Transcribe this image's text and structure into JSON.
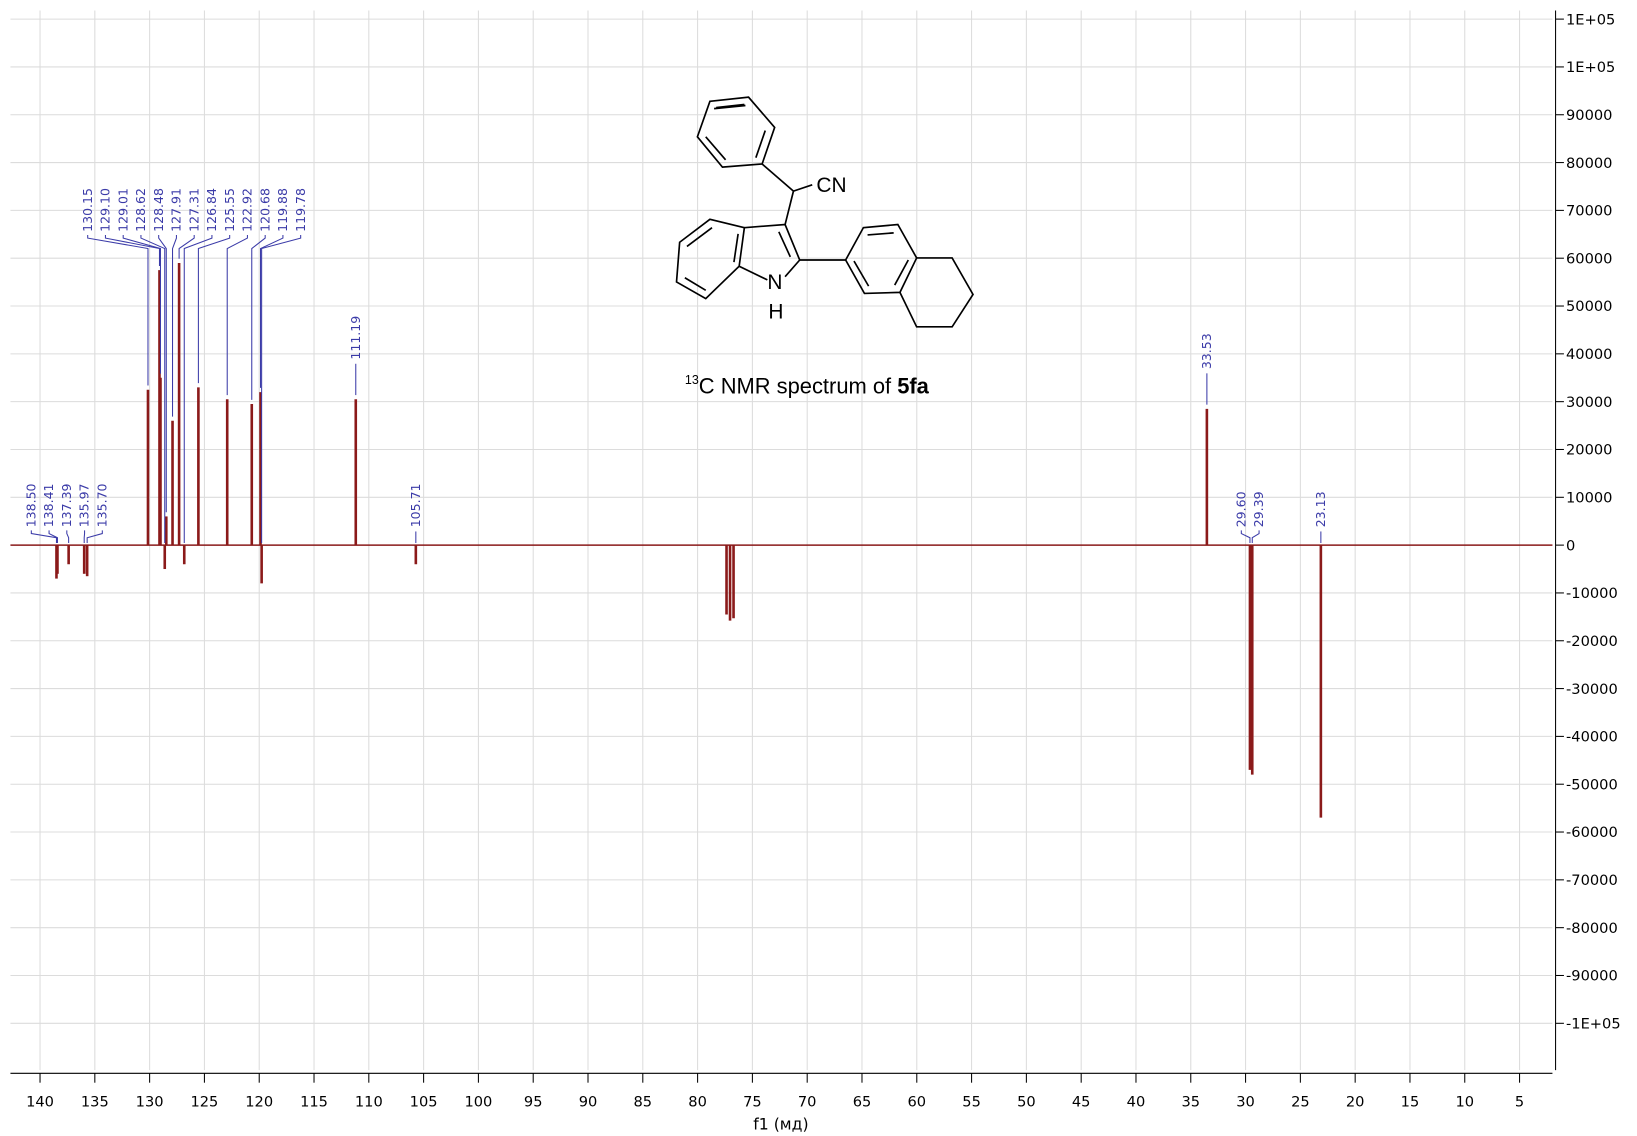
{
  "chart_data": {
    "type": "nmr",
    "title_sup": "13",
    "title": "C NMR spectrum of ",
    "title_bold": "5fa",
    "structure_labels": [
      "CN",
      "N",
      "H"
    ],
    "xlabel": "f1 (мд)",
    "xlim": [
      142.7,
      2.0
    ],
    "ylim": [
      -109800,
      111800
    ],
    "xticks": [
      140,
      135,
      130,
      125,
      120,
      115,
      110,
      105,
      100,
      95,
      90,
      85,
      80,
      75,
      70,
      65,
      60,
      55,
      50,
      45,
      40,
      35,
      30,
      25,
      20,
      15,
      10,
      5
    ],
    "yticks": [
      {
        "value": 110000,
        "label": "1E+05"
      },
      {
        "value": 100000,
        "label": "1E+05"
      },
      90000,
      80000,
      70000,
      60000,
      50000,
      40000,
      30000,
      20000,
      10000,
      0,
      -10000,
      -20000,
      -30000,
      -40000,
      -50000,
      -60000,
      -70000,
      -80000,
      -90000,
      {
        "value": -100000,
        "label": "-1E+05"
      }
    ],
    "grid": true,
    "color": "#8b1a1a",
    "label_color": "#3b3ba8",
    "peaks": {
      "x": [
        138.5,
        138.41,
        137.39,
        135.97,
        135.7,
        130.15,
        129.1,
        129.01,
        128.62,
        128.48,
        127.91,
        127.31,
        126.84,
        125.55,
        122.92,
        120.68,
        119.88,
        119.78,
        111.19,
        105.71,
        33.53,
        29.6,
        29.39,
        23.13
      ],
      "values": [
        -7000,
        -6000,
        -4000,
        -6000,
        -6500,
        32500,
        57500,
        35000,
        -5000,
        6000,
        26000,
        59000,
        -4000,
        33000,
        30500,
        29500,
        32000,
        -8000,
        30500,
        -4000,
        28500,
        -47000,
        -48000,
        -57000
      ],
      "value_labels": [
        "138.50",
        "138.41",
        "137.39",
        "135.97",
        "135.70",
        "130.15",
        "129.10",
        "129.01",
        "128.62",
        "128.48",
        "127.91",
        "127.31",
        "126.84",
        "125.55",
        "122.92",
        "120.68",
        "119.88",
        "119.78",
        "111.19",
        "105.71",
        "33.53",
        "29.60",
        "29.39",
        "23.13"
      ]
    },
    "unlabeled_peaks": {
      "x": [
        77.36,
        77.04,
        76.72
      ],
      "values": [
        -14500,
        -15800,
        -15300
      ]
    }
  }
}
